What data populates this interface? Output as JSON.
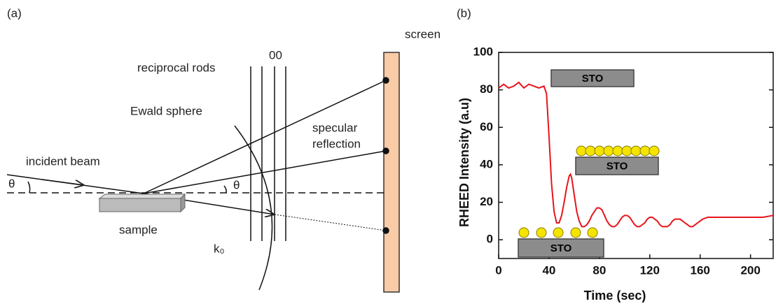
{
  "diagram": {
    "panel_a": "(a)",
    "panel_b": "(b)",
    "screen": "screen",
    "rods_label": "reciprocal rods",
    "rod_00": "00",
    "ewald": "Ewald sphere",
    "specular_1": "specular",
    "specular_2": "reflection",
    "incident": "incident beam",
    "theta_left": "θ",
    "theta_right": "θ",
    "sample": "sample",
    "k0": "k₀"
  },
  "chart_data": {
    "type": "line",
    "xlabel": "Time (sec)",
    "ylabel": "RHEED Intensity (a.u)",
    "x": [
      0,
      4,
      8,
      12,
      16,
      20,
      24,
      28,
      32,
      36,
      38,
      40,
      42,
      44,
      46,
      48,
      50,
      52,
      54,
      56,
      57,
      58,
      60,
      62,
      64,
      66,
      68,
      70,
      72,
      74,
      76,
      78,
      80,
      82,
      84,
      86,
      88,
      90,
      92,
      94,
      96,
      98,
      100,
      102,
      104,
      106,
      108,
      110,
      112,
      114,
      116,
      118,
      120,
      122,
      124,
      126,
      128,
      130,
      132,
      134,
      136,
      138,
      140,
      142,
      144,
      146,
      148,
      150,
      152,
      154,
      156,
      158,
      160,
      162,
      166,
      170,
      180,
      190,
      200,
      210,
      218
    ],
    "series": [
      {
        "color": "#e8141b",
        "values": [
          81,
          83,
          81,
          82,
          84,
          81,
          83,
          82,
          81,
          82,
          78,
          55,
          30,
          15,
          9,
          9,
          13,
          20,
          28,
          34,
          35,
          33,
          24,
          15,
          10,
          7,
          7,
          8,
          10,
          13,
          15,
          17,
          17,
          16,
          13,
          10,
          8,
          7,
          7,
          8,
          10,
          12,
          13,
          13,
          12,
          10,
          8,
          7,
          7,
          8,
          9,
          11,
          12,
          12,
          11,
          10,
          8,
          7,
          7,
          7,
          8,
          10,
          11,
          11,
          11,
          10,
          9,
          8,
          7,
          7,
          8,
          9,
          10,
          11,
          12,
          12,
          12,
          12,
          12,
          12,
          13
        ]
      }
    ],
    "xlim": [
      0,
      218
    ],
    "ylim": [
      -10,
      100
    ],
    "xticks": [
      0,
      40,
      80,
      120,
      160,
      200
    ],
    "yticks": [
      0,
      20,
      40,
      60,
      80,
      100
    ],
    "annotations": [
      "STO",
      "STO",
      "STO"
    ]
  }
}
